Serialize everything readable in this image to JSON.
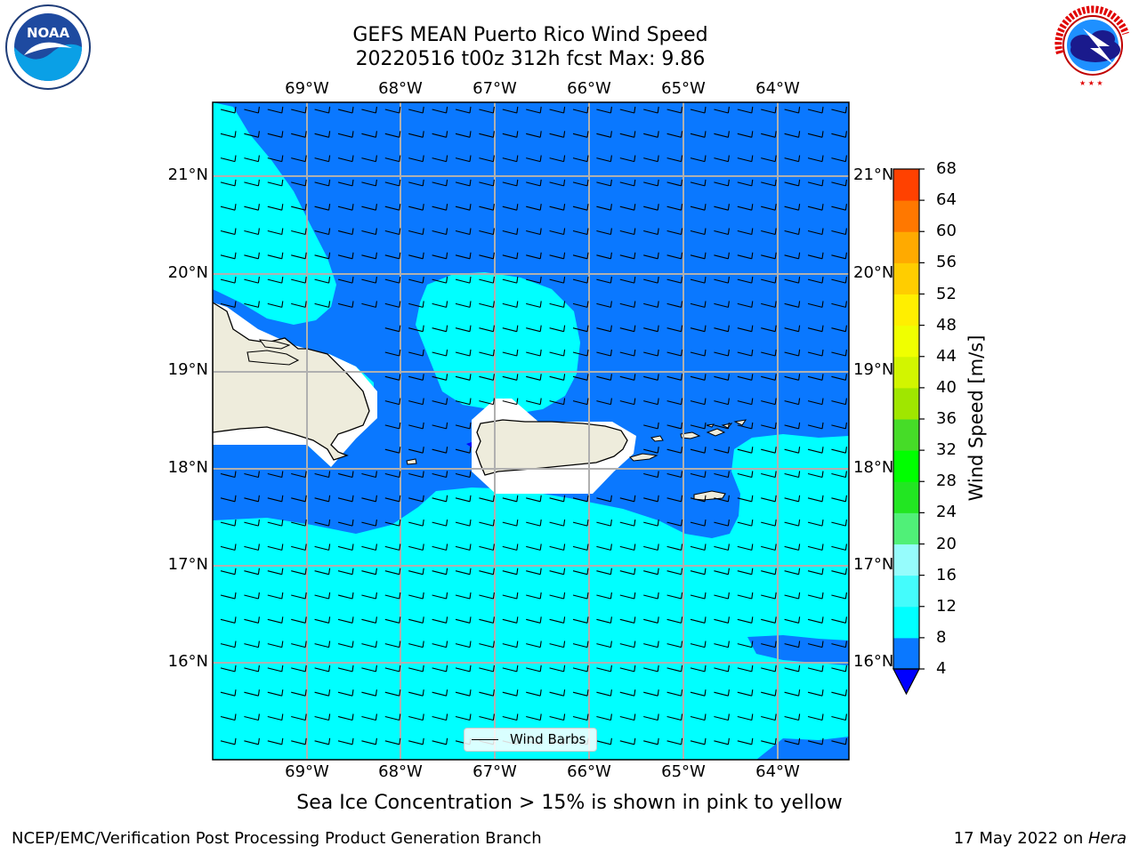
{
  "header": {
    "title_line1": "GEFS MEAN Puerto Rico Wind Speed",
    "title_line2": "20220516 t00z 312h fcst   Max: 9.86"
  },
  "logos": {
    "left_text": "NOAA",
    "left_ring_text": "NATIONAL OCEANIC AND ATMOSPHERIC ADMINISTRATION · U.S. DEPARTMENT OF COMMERCE",
    "right_ring_text": "NATIONAL WEATHER SERVICE"
  },
  "map": {
    "lon_labels": [
      "69°W",
      "68°W",
      "67°W",
      "66°W",
      "65°W",
      "64°W"
    ],
    "lat_labels": [
      "21°N",
      "20°N",
      "19°N",
      "18°N",
      "17°N",
      "16°N"
    ],
    "legend_label": "Wind Barbs",
    "colors": {
      "low_wind": "#0a78ff",
      "moderate_wind": "#00ffff",
      "land": "#eeecdc"
    }
  },
  "colorbar": {
    "label": "Wind Speed [m/s]",
    "ticks": [
      "4",
      "8",
      "12",
      "16",
      "20",
      "24",
      "28",
      "32",
      "36",
      "40",
      "44",
      "48",
      "52",
      "56",
      "60",
      "64",
      "68"
    ],
    "colors": [
      "#0a78ff",
      "#00ffff",
      "#44fcfc",
      "#96fcfc",
      "#50f078",
      "#22e622",
      "#00ff00",
      "#46dc28",
      "#a0e600",
      "#d2f500",
      "#f0ff00",
      "#ffef00",
      "#ffcd00",
      "#ffaa00",
      "#ff7800",
      "#ff4100",
      "#ff0000"
    ],
    "extend_color": "#0000ff"
  },
  "caption": "Sea Ice Concentration > 15% is shown in pink to yellow",
  "footer": {
    "left": "NCEP/EMC/Verification Post Processing Product Generation Branch",
    "date": "17 May 2022 on ",
    "machine": "Hera"
  }
}
